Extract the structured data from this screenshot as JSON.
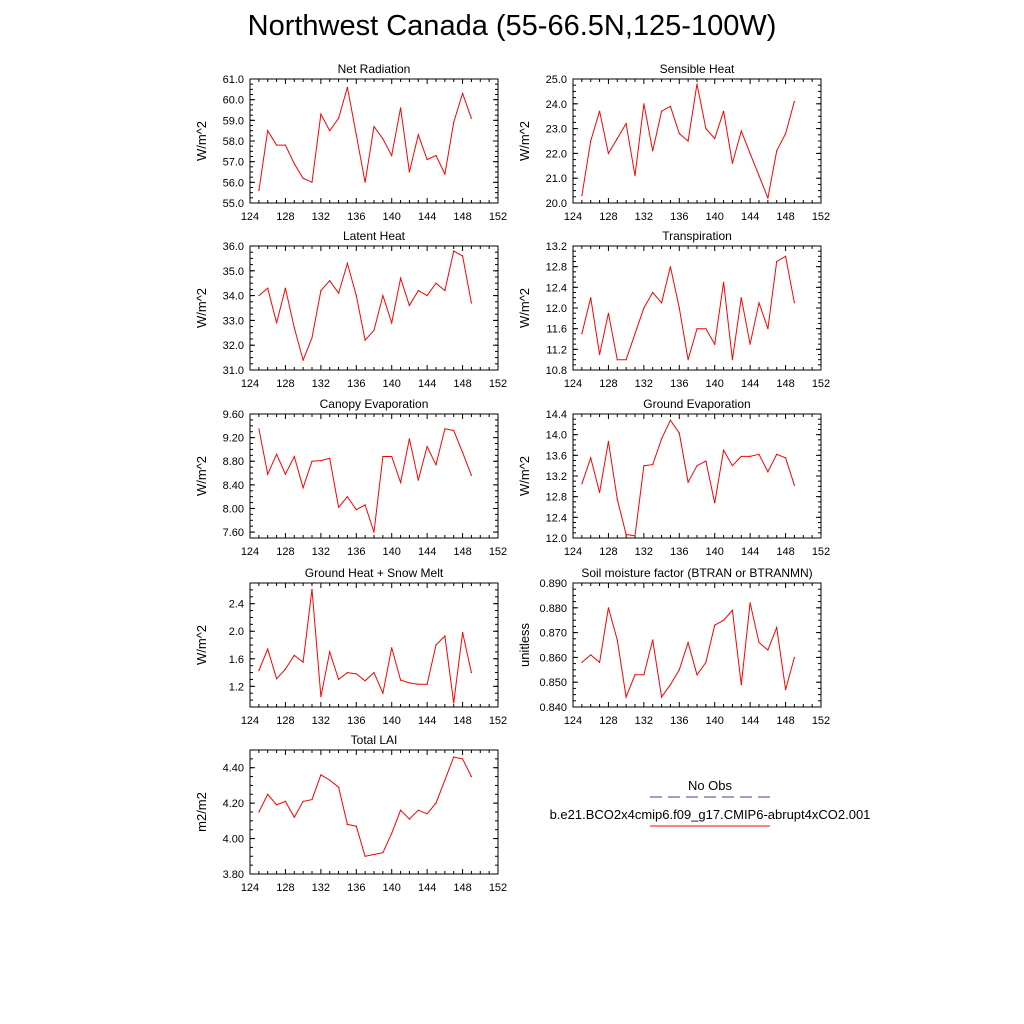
{
  "title": "Northwest Canada (55-66.5N,125-100W)",
  "xaxis": {
    "min": 124,
    "max": 152,
    "ticks": [
      124,
      128,
      132,
      136,
      140,
      144,
      148,
      152
    ]
  },
  "colors": {
    "model": "#ff0000",
    "obs": "#3f3f9f"
  },
  "legend": {
    "obs_label": "No Obs",
    "model_label": "b.e21.BCO2x4cmip6.f09_g17.CMIP6-abrupt4xCO2.001"
  },
  "chart_data": [
    {
      "type": "line",
      "title": "Net Radiation",
      "ylabel": "W/m^2",
      "ylim": [
        55.0,
        61.0
      ],
      "yticks": [
        55,
        56,
        57,
        58,
        59,
        60,
        61
      ],
      "ydecimals": 1,
      "x": [
        125,
        126,
        127,
        128,
        129,
        130,
        131,
        132,
        133,
        134,
        135,
        136,
        137,
        138,
        139,
        140,
        141,
        142,
        143,
        144,
        145,
        146,
        147,
        148,
        149
      ],
      "series": [
        {
          "values": [
            55.6,
            58.5,
            57.8,
            57.8,
            56.9,
            56.2,
            56.0,
            59.3,
            58.5,
            59.1,
            60.6,
            58.3,
            56.0,
            58.7,
            58.1,
            57.3,
            59.6,
            56.5,
            58.3,
            57.1,
            57.3,
            56.4,
            58.9,
            60.3,
            59.1
          ]
        }
      ]
    },
    {
      "type": "line",
      "title": "Sensible Heat",
      "ylabel": "W/m^2",
      "ylim": [
        20.0,
        25.0
      ],
      "yticks": [
        20,
        21,
        22,
        23,
        24,
        25
      ],
      "ydecimals": 1,
      "x": [
        125,
        126,
        127,
        128,
        129,
        130,
        131,
        132,
        133,
        134,
        135,
        136,
        137,
        138,
        139,
        140,
        141,
        142,
        143,
        144,
        145,
        146,
        147,
        148,
        149
      ],
      "series": [
        {
          "values": [
            20.3,
            22.5,
            23.7,
            22.0,
            22.6,
            23.2,
            21.1,
            24.0,
            22.1,
            23.7,
            23.9,
            22.8,
            22.5,
            24.8,
            23.0,
            22.6,
            23.7,
            21.6,
            22.9,
            22.0,
            21.1,
            20.2,
            22.1,
            22.8,
            24.1
          ]
        }
      ]
    },
    {
      "type": "line",
      "title": "Latent Heat",
      "ylabel": "W/m^2",
      "ylim": [
        31.0,
        36.0
      ],
      "yticks": [
        31,
        32,
        33,
        34,
        35,
        36
      ],
      "ydecimals": 1,
      "x": [
        125,
        126,
        127,
        128,
        129,
        130,
        131,
        132,
        133,
        134,
        135,
        136,
        137,
        138,
        139,
        140,
        141,
        142,
        143,
        144,
        145,
        146,
        147,
        148,
        149
      ],
      "series": [
        {
          "values": [
            34.0,
            34.3,
            32.9,
            34.3,
            32.7,
            31.4,
            32.3,
            34.2,
            34.6,
            34.1,
            35.3,
            34.0,
            32.2,
            32.6,
            34.0,
            32.9,
            34.7,
            33.6,
            34.2,
            34.0,
            34.5,
            34.2,
            35.8,
            35.6,
            33.7
          ]
        }
      ]
    },
    {
      "type": "line",
      "title": "Transpiration",
      "ylabel": "W/m^2",
      "ylim": [
        10.8,
        13.2
      ],
      "yticks": [
        10.8,
        11.2,
        11.6,
        12.0,
        12.4,
        12.8,
        13.2
      ],
      "ydecimals": 1,
      "x": [
        125,
        126,
        127,
        128,
        129,
        130,
        131,
        132,
        133,
        134,
        135,
        136,
        137,
        138,
        139,
        140,
        141,
        142,
        143,
        144,
        145,
        146,
        147,
        148,
        149
      ],
      "series": [
        {
          "values": [
            11.5,
            12.2,
            11.1,
            11.9,
            11.0,
            11.0,
            11.5,
            12.0,
            12.3,
            12.1,
            12.8,
            12.0,
            11.0,
            11.6,
            11.6,
            11.3,
            12.5,
            11.0,
            12.2,
            11.3,
            12.1,
            11.6,
            12.9,
            13.0,
            12.1
          ]
        }
      ]
    },
    {
      "type": "line",
      "title": "Canopy Evaporation",
      "ylabel": "W/m^2",
      "ylim": [
        7.5,
        9.6
      ],
      "yticks": [
        7.6,
        8.0,
        8.4,
        8.8,
        9.2,
        9.6
      ],
      "ydecimals": 2,
      "x": [
        125,
        126,
        127,
        128,
        129,
        130,
        131,
        132,
        133,
        134,
        135,
        136,
        137,
        138,
        139,
        140,
        141,
        142,
        143,
        144,
        145,
        146,
        147,
        148,
        149
      ],
      "series": [
        {
          "values": [
            9.35,
            8.58,
            8.92,
            8.58,
            8.88,
            8.35,
            8.8,
            8.81,
            8.85,
            8.02,
            8.2,
            7.98,
            8.06,
            7.6,
            8.88,
            8.88,
            8.44,
            9.18,
            8.48,
            9.05,
            8.74,
            9.35,
            9.32,
            8.95,
            8.56
          ]
        }
      ]
    },
    {
      "type": "line",
      "title": "Ground Evaporation",
      "ylabel": "W/m^2",
      "ylim": [
        12.0,
        14.4
      ],
      "yticks": [
        12.0,
        12.4,
        12.8,
        13.2,
        13.6,
        14.0,
        14.4
      ],
      "ydecimals": 1,
      "x": [
        125,
        126,
        127,
        128,
        129,
        130,
        131,
        132,
        133,
        134,
        135,
        136,
        137,
        138,
        139,
        140,
        141,
        142,
        143,
        144,
        145,
        146,
        147,
        148,
        149
      ],
      "series": [
        {
          "values": [
            13.05,
            13.55,
            12.88,
            13.87,
            12.75,
            12.07,
            12.04,
            13.4,
            13.42,
            13.92,
            14.28,
            14.03,
            13.08,
            13.4,
            13.49,
            12.68,
            13.7,
            13.4,
            13.58,
            13.58,
            13.62,
            13.28,
            13.62,
            13.55,
            13.02
          ]
        }
      ]
    },
    {
      "type": "line",
      "title": "Ground Heat + Snow Melt",
      "ylabel": "W/m^2",
      "ylim": [
        0.9,
        2.7
      ],
      "yticks": [
        1.2,
        1.6,
        2.0,
        2.4
      ],
      "ydecimals": 1,
      "x": [
        125,
        126,
        127,
        128,
        129,
        130,
        131,
        132,
        133,
        134,
        135,
        136,
        137,
        138,
        139,
        140,
        141,
        142,
        143,
        144,
        145,
        146,
        147,
        148,
        149
      ],
      "series": [
        {
          "values": [
            1.43,
            1.74,
            1.31,
            1.45,
            1.65,
            1.55,
            2.61,
            1.05,
            1.7,
            1.3,
            1.4,
            1.38,
            1.28,
            1.4,
            1.1,
            1.76,
            1.29,
            1.25,
            1.23,
            1.23,
            1.8,
            1.93,
            0.96,
            1.98,
            1.4
          ]
        }
      ]
    },
    {
      "type": "line",
      "title": "Soil moisture factor (BTRAN or BTRANMN)",
      "ylabel": "unitless",
      "ylim": [
        0.84,
        0.89
      ],
      "yticks": [
        0.84,
        0.85,
        0.86,
        0.87,
        0.88,
        0.89
      ],
      "ydecimals": 3,
      "x": [
        125,
        126,
        127,
        128,
        129,
        130,
        131,
        132,
        133,
        134,
        135,
        136,
        137,
        138,
        139,
        140,
        141,
        142,
        143,
        144,
        145,
        146,
        147,
        148,
        149
      ],
      "series": [
        {
          "values": [
            0.858,
            0.861,
            0.858,
            0.88,
            0.867,
            0.844,
            0.853,
            0.853,
            0.867,
            0.844,
            0.849,
            0.855,
            0.866,
            0.853,
            0.858,
            0.873,
            0.875,
            0.879,
            0.849,
            0.882,
            0.866,
            0.863,
            0.872,
            0.847,
            0.86
          ]
        }
      ]
    },
    {
      "type": "line",
      "title": "Total LAI",
      "ylabel": "m2/m2",
      "ylim": [
        3.8,
        4.5
      ],
      "yticks": [
        3.8,
        4.0,
        4.2,
        4.4
      ],
      "ydecimals": 2,
      "x": [
        125,
        126,
        127,
        128,
        129,
        130,
        131,
        132,
        133,
        134,
        135,
        136,
        137,
        138,
        139,
        140,
        141,
        142,
        143,
        144,
        145,
        146,
        147,
        148,
        149
      ],
      "series": [
        {
          "values": [
            4.15,
            4.25,
            4.19,
            4.21,
            4.12,
            4.21,
            4.22,
            4.36,
            4.33,
            4.29,
            4.08,
            4.07,
            3.9,
            3.91,
            3.92,
            4.03,
            4.16,
            4.11,
            4.16,
            4.14,
            4.2,
            4.33,
            4.46,
            4.45,
            4.35
          ]
        }
      ]
    }
  ]
}
